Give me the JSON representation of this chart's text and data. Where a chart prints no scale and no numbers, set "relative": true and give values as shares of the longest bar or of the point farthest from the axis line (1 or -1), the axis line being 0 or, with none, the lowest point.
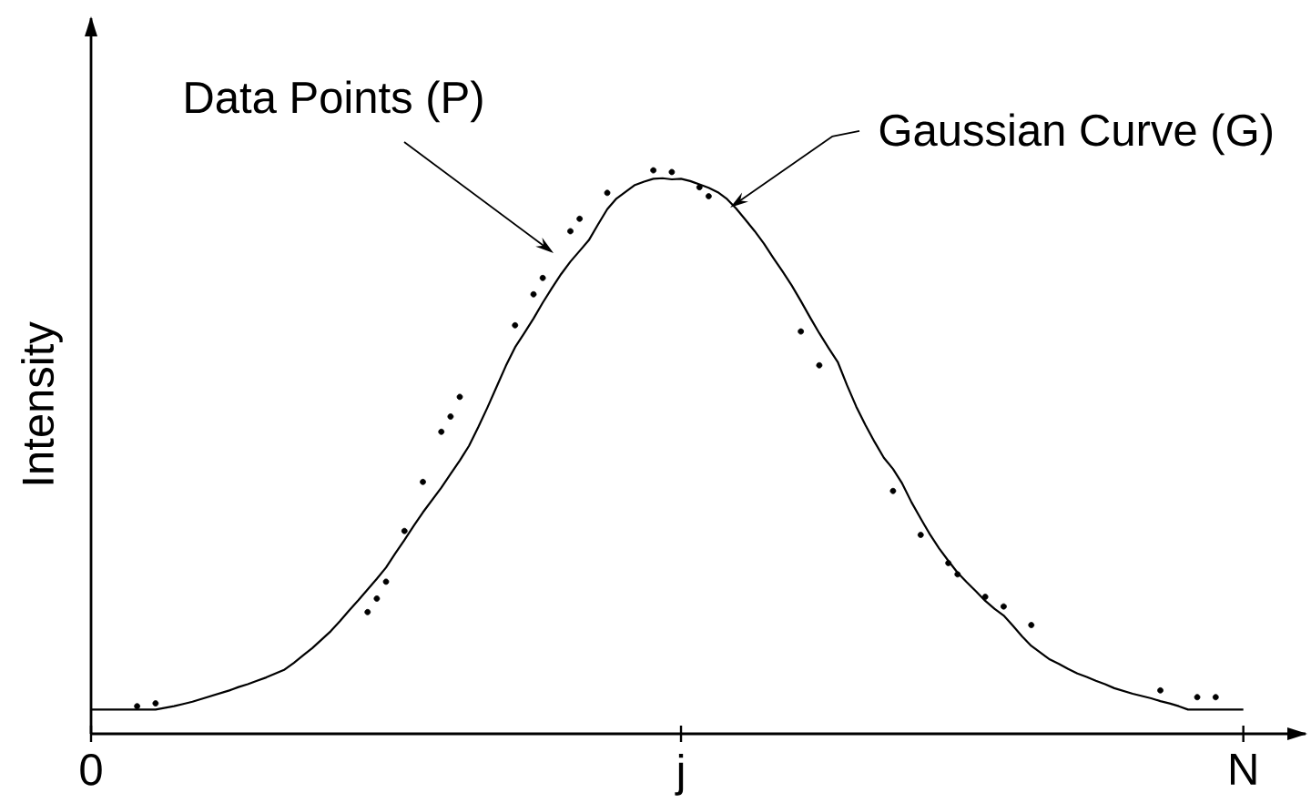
{
  "chart_data": {
    "type": "line",
    "relative": true,
    "ylabel": "Intensity",
    "tick_labels": "x",
    "categories": [
      "0",
      null,
      null,
      null,
      null,
      null,
      null,
      null,
      null,
      null,
      null,
      null,
      null,
      null,
      null,
      null,
      null,
      null,
      null,
      null,
      null,
      null,
      null,
      null,
      null,
      null,
      null,
      null,
      null,
      null,
      null,
      null,
      null,
      null,
      null,
      null,
      null,
      null,
      null,
      null,
      null,
      null,
      null,
      null,
      null,
      null,
      null,
      null,
      null,
      null,
      null,
      null,
      null,
      null,
      null,
      null,
      null,
      null,
      null,
      null,
      null,
      null,
      null,
      null,
      "j",
      null,
      null,
      null,
      null,
      null,
      null,
      null,
      null,
      null,
      null,
      null,
      null,
      null,
      null,
      null,
      null,
      null,
      null,
      null,
      null,
      null,
      null,
      null,
      null,
      null,
      null,
      null,
      null,
      null,
      null,
      null,
      null,
      null,
      null,
      null,
      null,
      null,
      null,
      null,
      null,
      null,
      null,
      null,
      null,
      null,
      null,
      null,
      null,
      null,
      null,
      null,
      null,
      null,
      null,
      null,
      null,
      null,
      null,
      null,
      null,
      "N"
    ],
    "series": [
      {
        "color": "#000000",
        "line_style": "solid",
        "values": [
          0.043,
          0.043,
          0.043,
          0.043,
          0.043,
          0.043,
          0.043,
          0.043,
          0.046,
          0.049,
          0.053,
          0.057,
          0.062,
          0.067,
          0.072,
          0.077,
          0.083,
          0.088,
          0.094,
          0.1,
          0.107,
          0.114,
          0.126,
          0.139,
          0.152,
          0.167,
          0.182,
          0.2,
          0.219,
          0.237,
          0.256,
          0.275,
          0.295,
          0.32,
          0.344,
          0.369,
          0.393,
          0.415,
          0.437,
          0.461,
          0.485,
          0.511,
          0.544,
          0.579,
          0.616,
          0.653,
          0.686,
          0.711,
          0.737,
          0.765,
          0.791,
          0.816,
          0.838,
          0.857,
          0.876,
          0.904,
          0.931,
          0.95,
          0.962,
          0.974,
          0.98,
          0.985,
          0.986,
          0.984,
          0.985,
          0.981,
          0.975,
          0.969,
          0.961,
          0.949,
          0.932,
          0.912,
          0.892,
          0.87,
          0.845,
          0.821,
          0.796,
          0.768,
          0.739,
          0.711,
          0.685,
          0.66,
          0.619,
          0.581,
          0.548,
          0.518,
          0.49,
          0.47,
          0.444,
          0.411,
          0.382,
          0.354,
          0.329,
          0.307,
          0.286,
          0.269,
          0.253,
          0.236,
          0.222,
          0.21,
          0.192,
          0.173,
          0.156,
          0.144,
          0.132,
          0.124,
          0.115,
          0.107,
          0.101,
          0.094,
          0.088,
          0.081,
          0.076,
          0.071,
          0.067,
          0.063,
          0.058,
          0.054,
          0.049,
          0.043,
          0.043,
          0.043,
          0.043,
          0.043,
          0.043,
          0.043
        ]
      },
      {
        "type": "scatter",
        "color": "#000000",
        "marker": "circle",
        "values": [
          null,
          null,
          null,
          null,
          null,
          0.049,
          null,
          0.054,
          null,
          null,
          null,
          null,
          null,
          null,
          null,
          null,
          null,
          null,
          null,
          null,
          null,
          null,
          null,
          null,
          null,
          null,
          null,
          null,
          null,
          null,
          0.216,
          0.24,
          0.27,
          null,
          0.36,
          null,
          0.447,
          null,
          0.536,
          0.563,
          0.598,
          null,
          null,
          null,
          null,
          null,
          0.725,
          null,
          0.78,
          0.809,
          null,
          null,
          0.892,
          0.914,
          null,
          null,
          0.96,
          null,
          null,
          null,
          null,
          1,
          null,
          0.997,
          null,
          null,
          0.97,
          0.954,
          null,
          null,
          null,
          null,
          null,
          null,
          null,
          null,
          null,
          0.714,
          null,
          0.654,
          null,
          null,
          null,
          null,
          null,
          null,
          null,
          0.431,
          null,
          null,
          0.353,
          null,
          null,
          0.303,
          0.283,
          null,
          null,
          0.243,
          null,
          0.226,
          null,
          null,
          0.193,
          null,
          null,
          null,
          null,
          null,
          null,
          null,
          null,
          null,
          null,
          null,
          null,
          null,
          0.077,
          null,
          null,
          null,
          0.065,
          null,
          0.065,
          null,
          null,
          null
        ]
      }
    ],
    "annotations": [
      "Data Points (P)",
      "Gaussian Curve (G)"
    ]
  }
}
